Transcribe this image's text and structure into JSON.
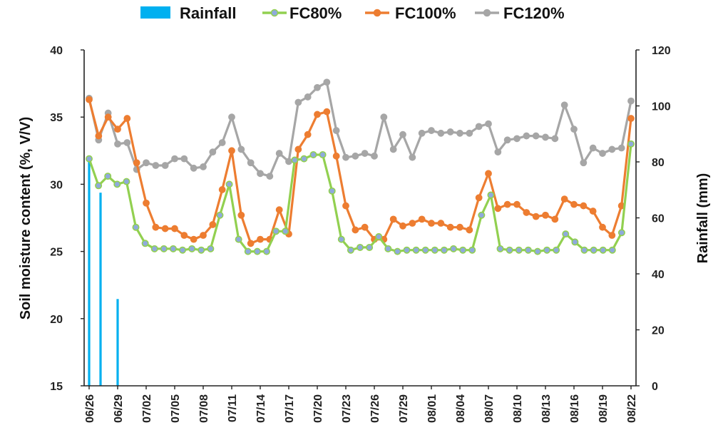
{
  "chart_data": {
    "type": "line",
    "xlabel": "",
    "ylabel": "Soil moisture content (%, V/V)",
    "y2label": "Rainfall (mm)",
    "ylim": [
      15,
      40
    ],
    "y2lim": [
      0,
      120
    ],
    "yticks": [
      "15",
      "20",
      "25",
      "30",
      "35",
      "40"
    ],
    "y2ticks": [
      "0",
      "20",
      "40",
      "60",
      "80",
      "100",
      "120"
    ],
    "xticks": [
      "06/26",
      "06/29",
      "07/02",
      "07/05",
      "07/08",
      "07/11",
      "07/14",
      "07/17",
      "07/20",
      "07/23",
      "07/26",
      "07/29",
      "08/01",
      "08/04",
      "08/07",
      "08/10",
      "08/13",
      "08/16",
      "08/19",
      "08/22"
    ],
    "legend": {
      "position": "top"
    },
    "grid": false,
    "series": [
      {
        "name": "Rainfall",
        "kind": "bar",
        "axis": "right",
        "color": "#00B0F0",
        "values": [
          80,
          0,
          69,
          0,
          0,
          31,
          0,
          0,
          0,
          0,
          0,
          0,
          0,
          0,
          0,
          0,
          0,
          0,
          0,
          0,
          0,
          0,
          0,
          0,
          0,
          0,
          0,
          0,
          0,
          0,
          0,
          0,
          0,
          0,
          0,
          0,
          0,
          0,
          0,
          0,
          0,
          0,
          0,
          0,
          0,
          0,
          0,
          0,
          0,
          0,
          0,
          0,
          0,
          0,
          0,
          0,
          0,
          0,
          0,
          0,
          0,
          0,
          0,
          0,
          0,
          0,
          0,
          0,
          0,
          0,
          0,
          0,
          0,
          0,
          0,
          0,
          0,
          0,
          0,
          0,
          0,
          0,
          0,
          0,
          0,
          0,
          0,
          0,
          0,
          0,
          0,
          0,
          0,
          0,
          0,
          0
        ]
      },
      {
        "name": "FC80%",
        "kind": "line",
        "axis": "left",
        "color": "#92D050",
        "marker": "#8FAADC",
        "values": [
          31.9,
          29.9,
          30.6,
          30.0,
          30.2,
          26.8,
          25.6,
          25.2,
          25.2,
          25.2,
          25.1,
          25.2,
          25.1,
          25.2,
          27.7,
          30.0,
          25.9,
          25.0,
          25.0,
          25.0,
          26.5,
          26.5,
          31.8,
          31.9,
          32.2,
          32.2,
          29.5,
          25.9,
          25.1,
          25.3,
          25.3,
          26.1,
          25.2,
          25.0,
          25.1,
          25.1,
          25.1,
          25.1,
          25.1,
          25.2,
          25.1,
          25.1,
          27.7,
          29.2,
          25.2,
          25.1,
          25.1,
          25.1,
          25.0,
          25.1,
          25.1,
          26.3,
          25.7,
          25.1,
          25.1,
          25.1,
          25.1,
          26.4,
          33.0
        ]
      },
      {
        "name": "FC100%",
        "kind": "line",
        "axis": "left",
        "color": "#ED7D31",
        "values": [
          36.3,
          33.6,
          35.0,
          34.1,
          34.9,
          31.6,
          28.6,
          26.8,
          26.7,
          26.7,
          26.2,
          25.9,
          26.2,
          27.0,
          29.6,
          32.5,
          27.7,
          25.6,
          25.9,
          25.9,
          28.1,
          26.3,
          32.6,
          33.7,
          35.2,
          35.4,
          32.1,
          28.4,
          26.6,
          26.8,
          25.9,
          25.9,
          27.4,
          26.9,
          27.1,
          27.4,
          27.1,
          27.1,
          26.8,
          26.8,
          26.6,
          29.0,
          30.8,
          28.2,
          28.5,
          28.5,
          27.9,
          27.6,
          27.7,
          27.4,
          28.9,
          28.5,
          28.4,
          28.0,
          26.8,
          26.2,
          28.4,
          34.9
        ]
      },
      {
        "name": "FC120%",
        "kind": "line",
        "axis": "left",
        "color": "#A6A6A6",
        "values": [
          36.4,
          33.3,
          35.3,
          33.0,
          33.1,
          31.1,
          31.6,
          31.4,
          31.4,
          31.9,
          31.9,
          31.2,
          31.3,
          32.4,
          33.1,
          35.0,
          32.6,
          31.6,
          30.8,
          30.6,
          32.3,
          31.7,
          36.1,
          36.5,
          37.2,
          37.6,
          34.0,
          32.0,
          32.1,
          32.3,
          32.1,
          35.0,
          32.6,
          33.7,
          32.0,
          33.8,
          34.0,
          33.8,
          33.9,
          33.8,
          33.8,
          34.3,
          34.5,
          32.4,
          33.3,
          33.4,
          33.6,
          33.6,
          33.5,
          33.4,
          35.9,
          34.1,
          31.6,
          32.7,
          32.3,
          32.6,
          32.7,
          36.2
        ]
      }
    ]
  }
}
